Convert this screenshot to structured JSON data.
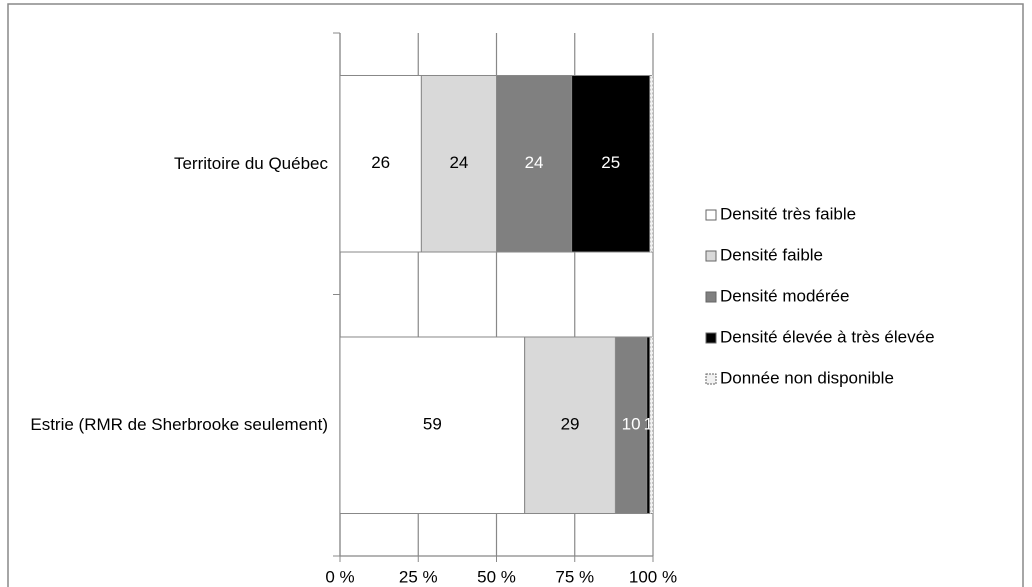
{
  "chart_data": {
    "type": "stacked_bar_horizontal",
    "categories": [
      "Territoire du Québec",
      "Estrie (RMR de Sherbrooke seulement)"
    ],
    "series": [
      {
        "name": "Densité très faible",
        "color": "#ffffff",
        "label_color": "#000000",
        "show_labels": true,
        "values": [
          26,
          59
        ]
      },
      {
        "name": "Densité faible",
        "color": "#d9d9d9",
        "label_color": "#000000",
        "show_labels": true,
        "values": [
          24,
          29
        ]
      },
      {
        "name": "Densité modérée",
        "color": "#808080",
        "label_color": "#ffffff",
        "show_labels": true,
        "values": [
          24,
          10
        ]
      },
      {
        "name": "Densité élevée à très élevée",
        "color": "#000000",
        "label_color": "#ffffff",
        "show_labels": true,
        "values": [
          25,
          1
        ]
      },
      {
        "name": "Donnée non disponible",
        "color": "#f2f2f2",
        "label_color": "#000000",
        "show_labels": false,
        "values": [
          1,
          1
        ]
      }
    ],
    "xlim": [
      0,
      100
    ],
    "xticks": [
      {
        "value": 0,
        "label": "0 %"
      },
      {
        "value": 25,
        "label": "25 %"
      },
      {
        "value": 50,
        "label": "50 %"
      },
      {
        "value": 75,
        "label": "75 %"
      },
      {
        "value": 100,
        "label": "100 %"
      }
    ],
    "grid": true
  }
}
